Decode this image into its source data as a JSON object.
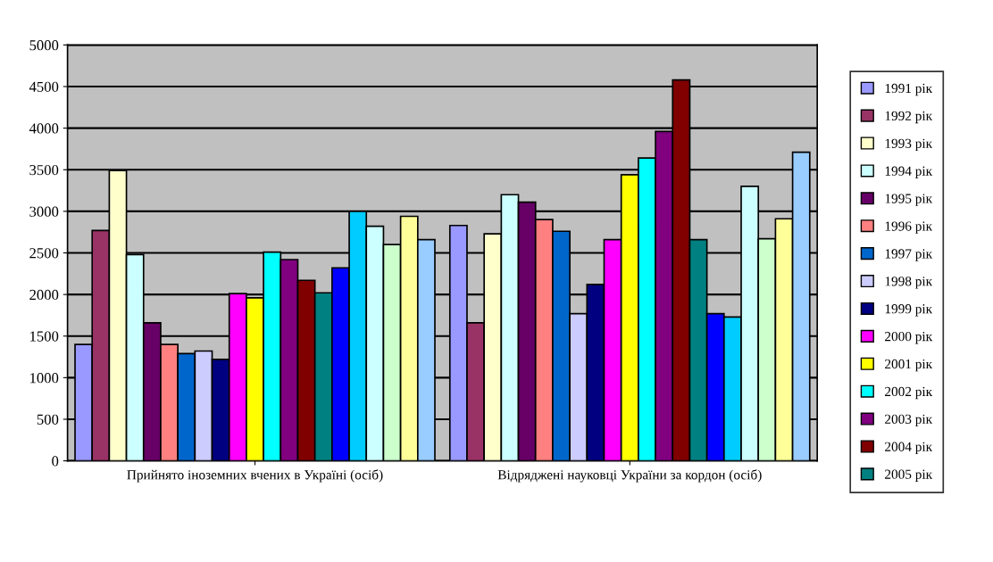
{
  "chart_data": {
    "type": "bar",
    "categories": [
      "Прийнято іноземних вчених в Україні (осіб)",
      "Відряджені науковці України за кордон (осіб)"
    ],
    "series": [
      {
        "name": "1991 рік",
        "color": "#9999ff",
        "values": [
          1400,
          2830
        ]
      },
      {
        "name": "1992 рік",
        "color": "#993366",
        "values": [
          2770,
          1660
        ]
      },
      {
        "name": "1993 рік",
        "color": "#ffffcc",
        "values": [
          3490,
          2730
        ]
      },
      {
        "name": "1994 рік",
        "color": "#ccffff",
        "values": [
          2480,
          3200
        ]
      },
      {
        "name": "1995 рік",
        "color": "#660066",
        "values": [
          1660,
          3110
        ]
      },
      {
        "name": "1996 рік",
        "color": "#ff8080",
        "values": [
          1400,
          2900
        ]
      },
      {
        "name": "1997 рік",
        "color": "#0066cc",
        "values": [
          1290,
          2760
        ]
      },
      {
        "name": "1998 рік",
        "color": "#ccccff",
        "values": [
          1320,
          1770
        ]
      },
      {
        "name": "1999 рік",
        "color": "#000080",
        "values": [
          1220,
          2120
        ]
      },
      {
        "name": "2000 рік",
        "color": "#ff00ff",
        "values": [
          2010,
          2660
        ]
      },
      {
        "name": "2001 рік",
        "color": "#ffff00",
        "values": [
          1960,
          3440
        ]
      },
      {
        "name": "2002 рік",
        "color": "#00ffff",
        "values": [
          2510,
          3640
        ]
      },
      {
        "name": "2003 рік",
        "color": "#800080",
        "values": [
          2420,
          3960
        ]
      },
      {
        "name": "2004 рік",
        "color": "#800000",
        "values": [
          2170,
          4580
        ]
      },
      {
        "name": "2005 рік",
        "color": "#008080",
        "values": [
          2020,
          2660
        ]
      },
      {
        "color": "#0000ff",
        "values": [
          2320,
          1770
        ]
      },
      {
        "color": "#00ccff",
        "values": [
          3000,
          1730
        ]
      },
      {
        "color": "#ccffff",
        "values": [
          2820,
          3300
        ]
      },
      {
        "color": "#ccffcc",
        "values": [
          2600,
          2670
        ]
      },
      {
        "color": "#ffff99",
        "values": [
          2940,
          2910
        ]
      },
      {
        "color": "#99ccff",
        "values": [
          2660,
          3710
        ]
      }
    ],
    "ylim": [
      0,
      5000
    ],
    "yticks": [
      0,
      500,
      1000,
      1500,
      2000,
      2500,
      3000,
      3500,
      4000,
      4500,
      5000
    ],
    "grid": "y",
    "legend": "right"
  }
}
